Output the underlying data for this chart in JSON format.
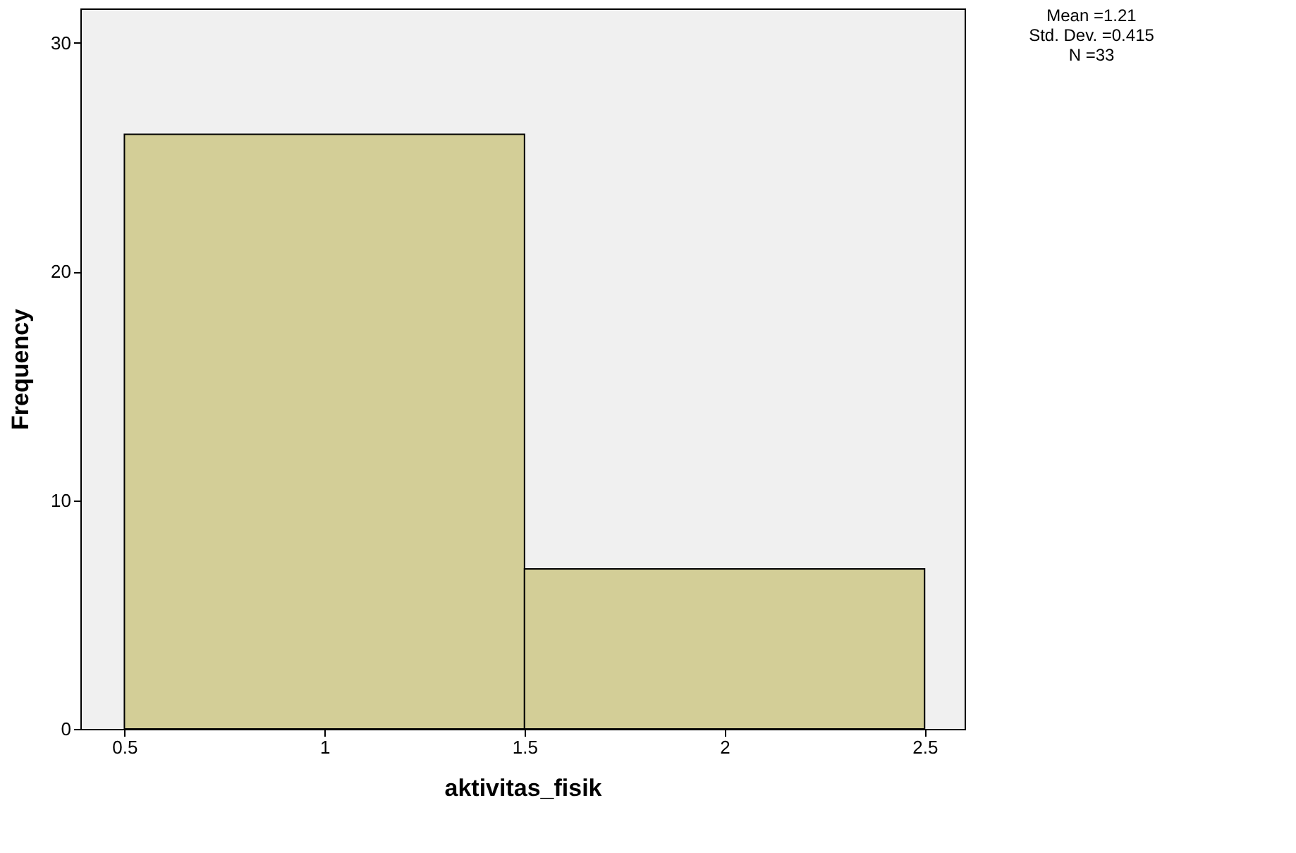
{
  "chart_data": {
    "type": "histogram",
    "xlabel": "aktivitas_fisik",
    "ylabel": "Frequency",
    "bins": [
      0.5,
      1.5,
      2.5
    ],
    "values": [
      26,
      7
    ],
    "color": "#d3ce97",
    "xlim": [
      0.39,
      2.6
    ],
    "xticks": [
      0.5,
      1,
      1.5,
      2,
      2.5
    ],
    "ylim": [
      0,
      31.5
    ],
    "yticks": [
      0,
      10,
      20,
      30
    ],
    "grid": false,
    "annotations": [
      "Mean =1.21",
      "Std. Dev. =0.415",
      "N =33"
    ]
  }
}
